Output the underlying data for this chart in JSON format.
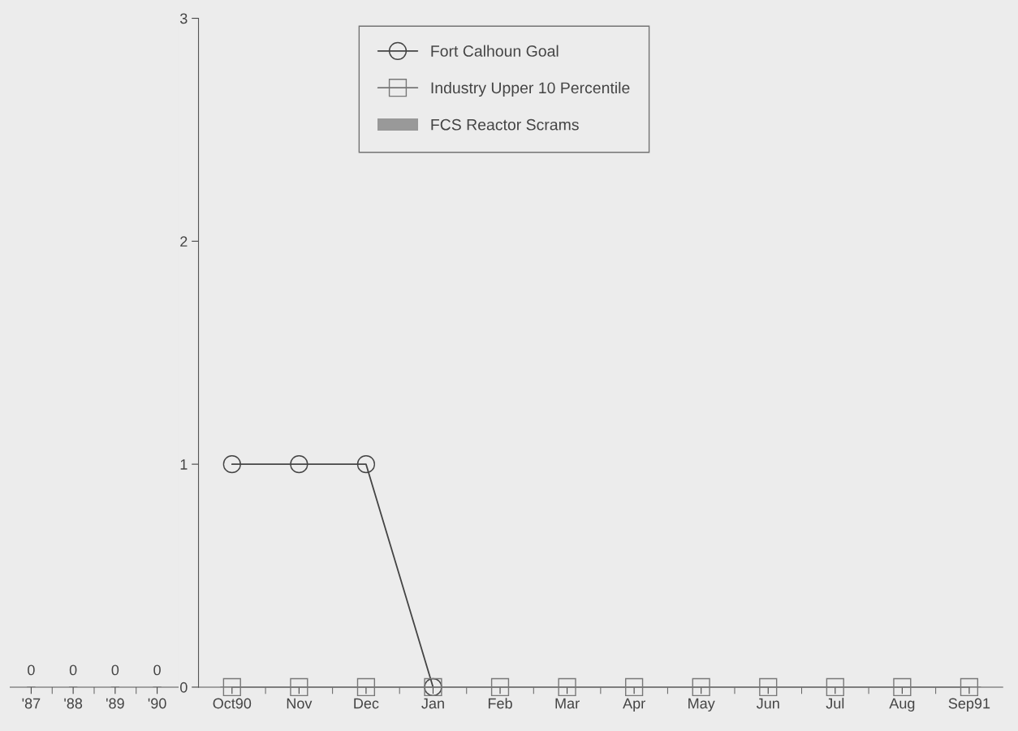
{
  "chart_data": [
    {
      "type": "bar",
      "categories": [
        "'87",
        "'88",
        "'89",
        "'90"
      ],
      "values": [
        0,
        0,
        0,
        0
      ],
      "color": "#999999",
      "data_labels": true,
      "ylim": [
        0,
        3
      ],
      "tick_labels": "x",
      "grid": false
    },
    {
      "type": "line",
      "categories": [
        "Oct90",
        "Nov",
        "Dec",
        "Jan",
        "Feb",
        "Mar",
        "Apr",
        "May",
        "Jun",
        "Jul",
        "Aug",
        "Sep91"
      ],
      "ylim": [
        0,
        3
      ],
      "yticks": [
        0,
        1,
        2,
        3
      ],
      "grid": false,
      "legend": "top",
      "series": [
        {
          "name": "Fort Calhoun Goal",
          "type": "line",
          "color": "#444444",
          "marker": "circle",
          "values": [
            1,
            1,
            1,
            0,
            null,
            null,
            null,
            null,
            null,
            null,
            null,
            null
          ]
        },
        {
          "name": "Industry Upper 10 Percentile",
          "type": "line",
          "color": "#777777",
          "marker": "square",
          "values": [
            0,
            0,
            0,
            0,
            0,
            0,
            0,
            0,
            0,
            0,
            0,
            0
          ]
        },
        {
          "name": "FCS Reactor Scrams",
          "type": "bar",
          "color": "#999999",
          "values": [
            0,
            0,
            0,
            0,
            0,
            0,
            0,
            0,
            0,
            0,
            0,
            0
          ]
        }
      ]
    }
  ]
}
